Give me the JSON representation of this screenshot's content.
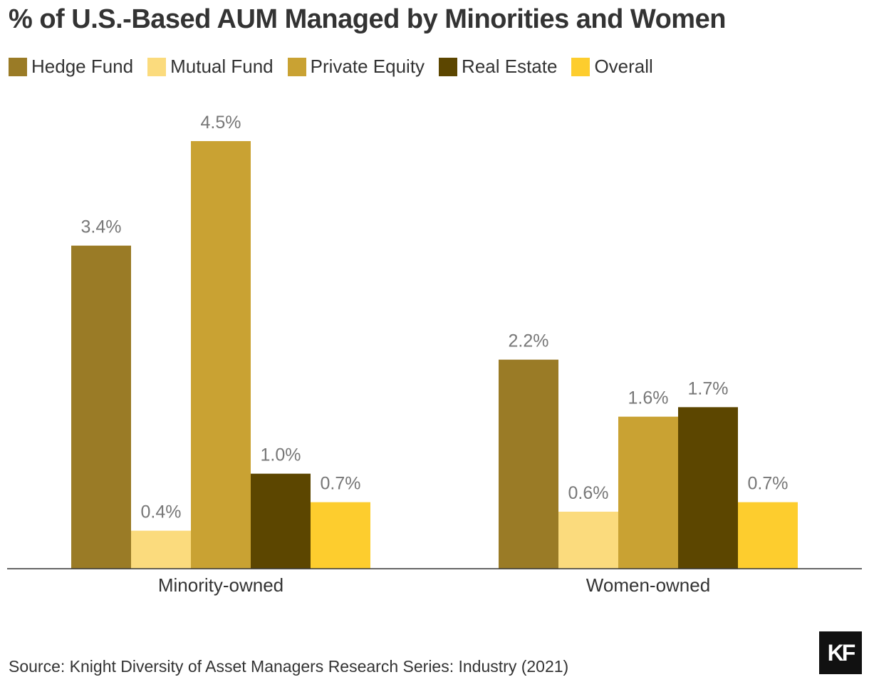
{
  "chart_data": {
    "type": "bar",
    "title": "% of U.S.-Based AUM Managed by Minorities and Women",
    "categories": [
      "Minority-owned",
      "Women-owned"
    ],
    "series": [
      {
        "name": "Hedge Fund",
        "color": "#9A7B26",
        "values": [
          3.4,
          2.2
        ],
        "labels": [
          "3.4%",
          "2.2%"
        ]
      },
      {
        "name": "Mutual Fund",
        "color": "#FBDB7D",
        "values": [
          0.4,
          0.6
        ],
        "labels": [
          "0.4%",
          "0.6%"
        ]
      },
      {
        "name": "Private Equity",
        "color": "#C9A233",
        "values": [
          4.5,
          1.6
        ],
        "labels": [
          "4.5%",
          "1.6%"
        ]
      },
      {
        "name": "Real Estate",
        "color": "#5C4600",
        "values": [
          1.0,
          1.7
        ],
        "labels": [
          "1.0%",
          "1.7%"
        ]
      },
      {
        "name": "Overall",
        "color": "#FDCD2E",
        "values": [
          0.7,
          0.7
        ],
        "labels": [
          "0.7%",
          "0.7%"
        ]
      }
    ],
    "ylim": [
      0,
      4.5
    ],
    "grid": false,
    "legend": "top-left"
  },
  "source": "Source: Knight Diversity of Asset Managers Research Series: Industry (2021)",
  "logo_text": "KF"
}
